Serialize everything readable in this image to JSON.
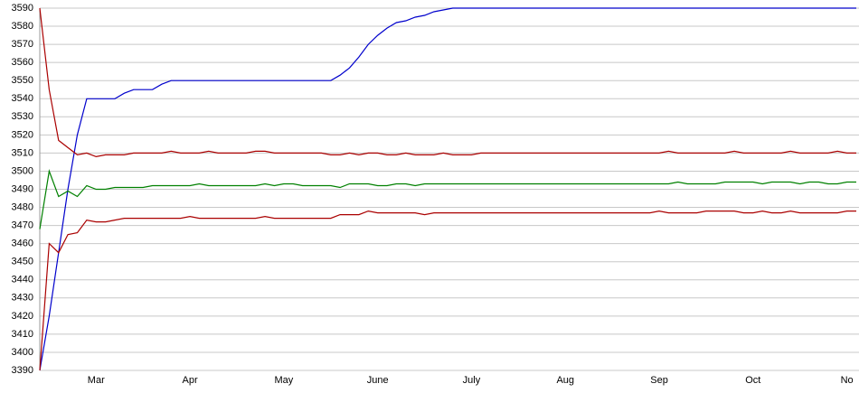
{
  "chart_data": {
    "type": "line",
    "categories": [
      null,
      null,
      null,
      null,
      null,
      null,
      "Mar",
      null,
      null,
      null,
      null,
      null,
      null,
      null,
      null,
      null,
      "Apr",
      null,
      null,
      null,
      null,
      null,
      null,
      null,
      null,
      null,
      "May",
      null,
      null,
      null,
      null,
      null,
      null,
      null,
      null,
      null,
      "June",
      null,
      null,
      null,
      null,
      null,
      null,
      null,
      null,
      null,
      "July",
      null,
      null,
      null,
      null,
      null,
      null,
      null,
      null,
      null,
      "Aug",
      null,
      null,
      null,
      null,
      null,
      null,
      null,
      null,
      null,
      "Sep",
      null,
      null,
      null,
      null,
      null,
      null,
      null,
      null,
      null,
      "Oct",
      null,
      null,
      null,
      null,
      null,
      null,
      null,
      null,
      null,
      "No",
      null
    ],
    "series": [
      {
        "color": "#0000cc",
        "values": [
          3390,
          3420,
          3455,
          3490,
          3520,
          3540,
          3540,
          3540,
          3540,
          3543,
          3545,
          3545,
          3545,
          3548,
          3550,
          3550,
          3550,
          3550,
          3550,
          3550,
          3550,
          3550,
          3550,
          3550,
          3550,
          3550,
          3550,
          3550,
          3550,
          3550,
          3550,
          3550,
          3553,
          3557,
          3563,
          3570,
          3575,
          3579,
          3582,
          3583,
          3585,
          3586,
          3588,
          3589,
          3590,
          3590,
          3590,
          3590,
          3590,
          3590,
          3590,
          3590,
          3590,
          3590,
          3590,
          3590,
          3590,
          3590,
          3590,
          3590,
          3590,
          3590,
          3590,
          3590,
          3590,
          3590,
          3590,
          3590,
          3590,
          3590,
          3590,
          3590,
          3590,
          3590,
          3590,
          3590,
          3590,
          3590,
          3590,
          3590,
          3590,
          3590,
          3590,
          3590,
          3590,
          3590,
          3590,
          3590
        ]
      },
      {
        "color": "#aa0000",
        "values": [
          3590,
          3545,
          3517,
          3513,
          3509,
          3510,
          3508,
          3509,
          3509,
          3509,
          3510,
          3510,
          3510,
          3510,
          3511,
          3510,
          3510,
          3510,
          3511,
          3510,
          3510,
          3510,
          3510,
          3511,
          3511,
          3510,
          3510,
          3510,
          3510,
          3510,
          3510,
          3509,
          3509,
          3510,
          3509,
          3510,
          3510,
          3509,
          3509,
          3510,
          3509,
          3509,
          3509,
          3510,
          3509,
          3509,
          3509,
          3510,
          3510,
          3510,
          3510,
          3510,
          3510,
          3510,
          3510,
          3510,
          3510,
          3510,
          3510,
          3510,
          3510,
          3510,
          3510,
          3510,
          3510,
          3510,
          3510,
          3511,
          3510,
          3510,
          3510,
          3510,
          3510,
          3510,
          3511,
          3510,
          3510,
          3510,
          3510,
          3510,
          3511,
          3510,
          3510,
          3510,
          3510,
          3511,
          3510,
          3510
        ]
      },
      {
        "color": "#008000",
        "values": [
          3468,
          3500,
          3486,
          3489,
          3486,
          3492,
          3490,
          3490,
          3491,
          3491,
          3491,
          3491,
          3492,
          3492,
          3492,
          3492,
          3492,
          3493,
          3492,
          3492,
          3492,
          3492,
          3492,
          3492,
          3493,
          3492,
          3493,
          3493,
          3492,
          3492,
          3492,
          3492,
          3491,
          3493,
          3493,
          3493,
          3492,
          3492,
          3493,
          3493,
          3492,
          3493,
          3493,
          3493,
          3493,
          3493,
          3493,
          3493,
          3493,
          3493,
          3493,
          3493,
          3493,
          3493,
          3493,
          3493,
          3493,
          3493,
          3493,
          3493,
          3493,
          3493,
          3493,
          3493,
          3493,
          3493,
          3493,
          3493,
          3494,
          3493,
          3493,
          3493,
          3493,
          3494,
          3494,
          3494,
          3494,
          3493,
          3494,
          3494,
          3494,
          3493,
          3494,
          3494,
          3493,
          3493,
          3494,
          3494
        ]
      },
      {
        "color": "#aa0000",
        "values": [
          3390,
          3460,
          3455,
          3465,
          3466,
          3473,
          3472,
          3472,
          3473,
          3474,
          3474,
          3474,
          3474,
          3474,
          3474,
          3474,
          3475,
          3474,
          3474,
          3474,
          3474,
          3474,
          3474,
          3474,
          3475,
          3474,
          3474,
          3474,
          3474,
          3474,
          3474,
          3474,
          3476,
          3476,
          3476,
          3478,
          3477,
          3477,
          3477,
          3477,
          3477,
          3476,
          3477,
          3477,
          3477,
          3477,
          3477,
          3477,
          3477,
          3477,
          3477,
          3477,
          3477,
          3477,
          3477,
          3477,
          3477,
          3477,
          3477,
          3477,
          3477,
          3477,
          3477,
          3477,
          3477,
          3477,
          3478,
          3477,
          3477,
          3477,
          3477,
          3478,
          3478,
          3478,
          3478,
          3477,
          3477,
          3478,
          3477,
          3477,
          3478,
          3477,
          3477,
          3477,
          3477,
          3477,
          3478,
          3478
        ]
      }
    ],
    "ylim": [
      3390,
      3590
    ],
    "yticks": [
      3390,
      3400,
      3410,
      3420,
      3430,
      3440,
      3450,
      3460,
      3470,
      3480,
      3490,
      3500,
      3510,
      3520,
      3530,
      3540,
      3550,
      3560,
      3570,
      3580,
      3590
    ],
    "grid": true
  }
}
